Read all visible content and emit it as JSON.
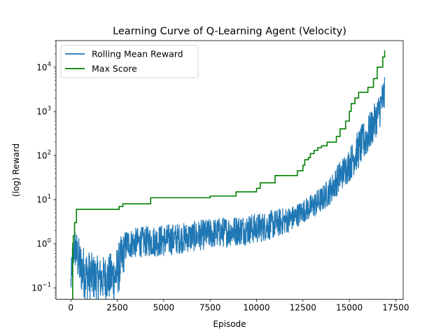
{
  "chart_data": {
    "type": "line",
    "title": "Learning Curve of Q-Learning Agent (Velocity)",
    "xlabel": "Episode",
    "ylabel": "(log) Reward",
    "yscale": "log",
    "xlim": [
      -800,
      17900
    ],
    "ylim": [
      0.055,
      40000
    ],
    "x_ticks": [
      0,
      2500,
      5000,
      7500,
      10000,
      12500,
      15000,
      17500
    ],
    "y_ticks": [
      {
        "value": 0.1,
        "base": "10",
        "exp": "−1"
      },
      {
        "value": 1,
        "base": "10",
        "exp": "0"
      },
      {
        "value": 10,
        "base": "10",
        "exp": "1"
      },
      {
        "value": 100,
        "base": "10",
        "exp": "2"
      },
      {
        "value": 1000,
        "base": "10",
        "exp": "3"
      },
      {
        "value": 10000,
        "base": "10",
        "exp": "4"
      }
    ],
    "legend_position": "top-left",
    "series": [
      {
        "name": "Rolling Mean Reward",
        "color": "#1f77b4",
        "style": "noisy-band",
        "x": [
          0,
          100,
          200,
          300,
          500,
          800,
          1200,
          1600,
          2000,
          2400,
          2700,
          3000,
          4000,
          5000,
          6000,
          7000,
          8000,
          9000,
          10000,
          11000,
          12000,
          12500,
          13000,
          13500,
          14000,
          14500,
          15000,
          15500,
          16000,
          16500,
          16900
        ],
        "low": [
          0.05,
          0.2,
          0.3,
          0.2,
          0.08,
          0.05,
          0.05,
          0.05,
          0.05,
          0.05,
          0.1,
          0.45,
          0.5,
          0.5,
          0.6,
          0.7,
          0.8,
          0.9,
          1.0,
          1.3,
          2.0,
          3.0,
          3.5,
          5.0,
          8.0,
          15,
          25,
          50,
          100,
          300,
          800
        ],
        "high": [
          0.3,
          1.2,
          2.5,
          2.0,
          1.2,
          0.8,
          0.6,
          0.5,
          0.6,
          0.7,
          1.5,
          2.2,
          2.5,
          2.8,
          3.0,
          3.5,
          4.0,
          4.5,
          5.0,
          6.0,
          7.5,
          10,
          14,
          20,
          35,
          80,
          150,
          400,
          800,
          2000,
          7500
        ]
      },
      {
        "name": "Max Score",
        "color": "#008000",
        "style": "step",
        "x": [
          0,
          100,
          130,
          200,
          300,
          2600,
          2800,
          4300,
          7500,
          8900,
          10000,
          10200,
          11000,
          12200,
          12500,
          12600,
          12800,
          12900,
          13100,
          13300,
          13500,
          13800,
          14300,
          14500,
          14800,
          15000,
          15100,
          15300,
          15500,
          16000,
          16300,
          16500,
          16800,
          16900
        ],
        "y": [
          0.05,
          1.0,
          1.5,
          3.0,
          6.0,
          7.0,
          8.0,
          11,
          12,
          15,
          18,
          24,
          35,
          45,
          60,
          80,
          90,
          110,
          130,
          150,
          165,
          200,
          270,
          400,
          600,
          1000,
          1500,
          2000,
          2700,
          3500,
          5500,
          10000,
          17000,
          24000
        ]
      }
    ]
  }
}
